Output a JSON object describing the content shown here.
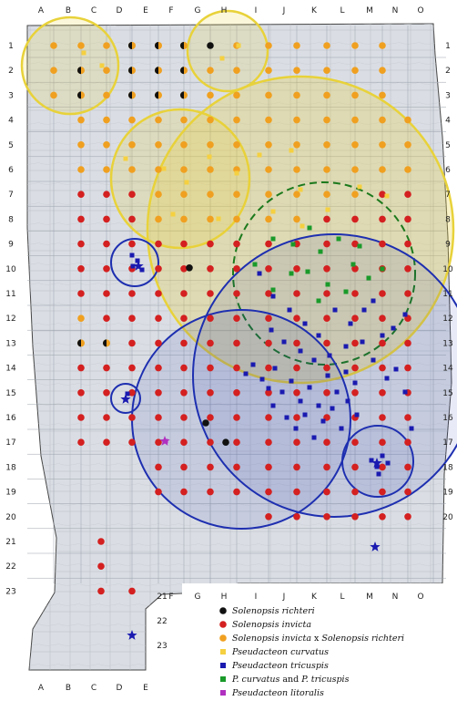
{
  "columns_top": [
    "A",
    "B",
    "C",
    "D",
    "E",
    "F",
    "G",
    "H",
    "I",
    "J",
    "K",
    "L",
    "M",
    "N",
    "O"
  ],
  "columns_bottom_left": [
    "A",
    "B",
    "C",
    "D",
    "E"
  ],
  "columns_bottom_right": [
    "F",
    "G",
    "H",
    "I",
    "J",
    "K",
    "L",
    "M",
    "N",
    "O"
  ],
  "rows_left": [
    "1",
    "2",
    "3",
    "4",
    "5",
    "6",
    "7",
    "8",
    "9",
    "10",
    "11",
    "12",
    "13",
    "14",
    "15",
    "16",
    "17",
    "18",
    "19",
    "20",
    "21",
    "22",
    "23"
  ],
  "rows_right": [
    "1",
    "2",
    "3",
    "4",
    "5",
    "6",
    "7",
    "8",
    "9",
    "10",
    "11",
    "12",
    "13",
    "14",
    "15",
    "16",
    "17",
    "18",
    "19",
    "20"
  ],
  "inset_rows": [
    "21",
    "22",
    "23"
  ],
  "colors": {
    "richteri": "#111111",
    "invicta": "#d42020",
    "hybrid": "#f0a020",
    "curvatus": "#f5d040",
    "tricuspis": "#1a1ab0",
    "both": "#1a9a2a",
    "litoralis": "#b030c0",
    "circle_yellow": "#e8d23a",
    "circle_blue": "#1e2fb0",
    "circle_green": "#1d7a1d"
  },
  "legend": [
    {
      "key": "richteri",
      "label_main": "Solenopsis richteri",
      "symbol": "dot"
    },
    {
      "key": "invicta",
      "label_main": "Solenopsis invicta",
      "symbol": "dot"
    },
    {
      "key": "hybrid",
      "label_main": "Solenopsis invicta",
      "label_mid": " x ",
      "label_end": "Solenopsis  richteri",
      "symbol": "dot"
    },
    {
      "key": "curvatus",
      "label_main": "Pseudacteon curvatus",
      "symbol": "square"
    },
    {
      "key": "tricuspis",
      "label_main": "Pseudacteon tricuspis",
      "symbol": "square"
    },
    {
      "key": "both",
      "label_main": "P. curvatus",
      "label_mid": " and ",
      "label_end": "P. tricuspis",
      "symbol": "square"
    },
    {
      "key": "litoralis",
      "label_main": "Pseudacteon litoralis",
      "symbol": "square"
    }
  ]
}
